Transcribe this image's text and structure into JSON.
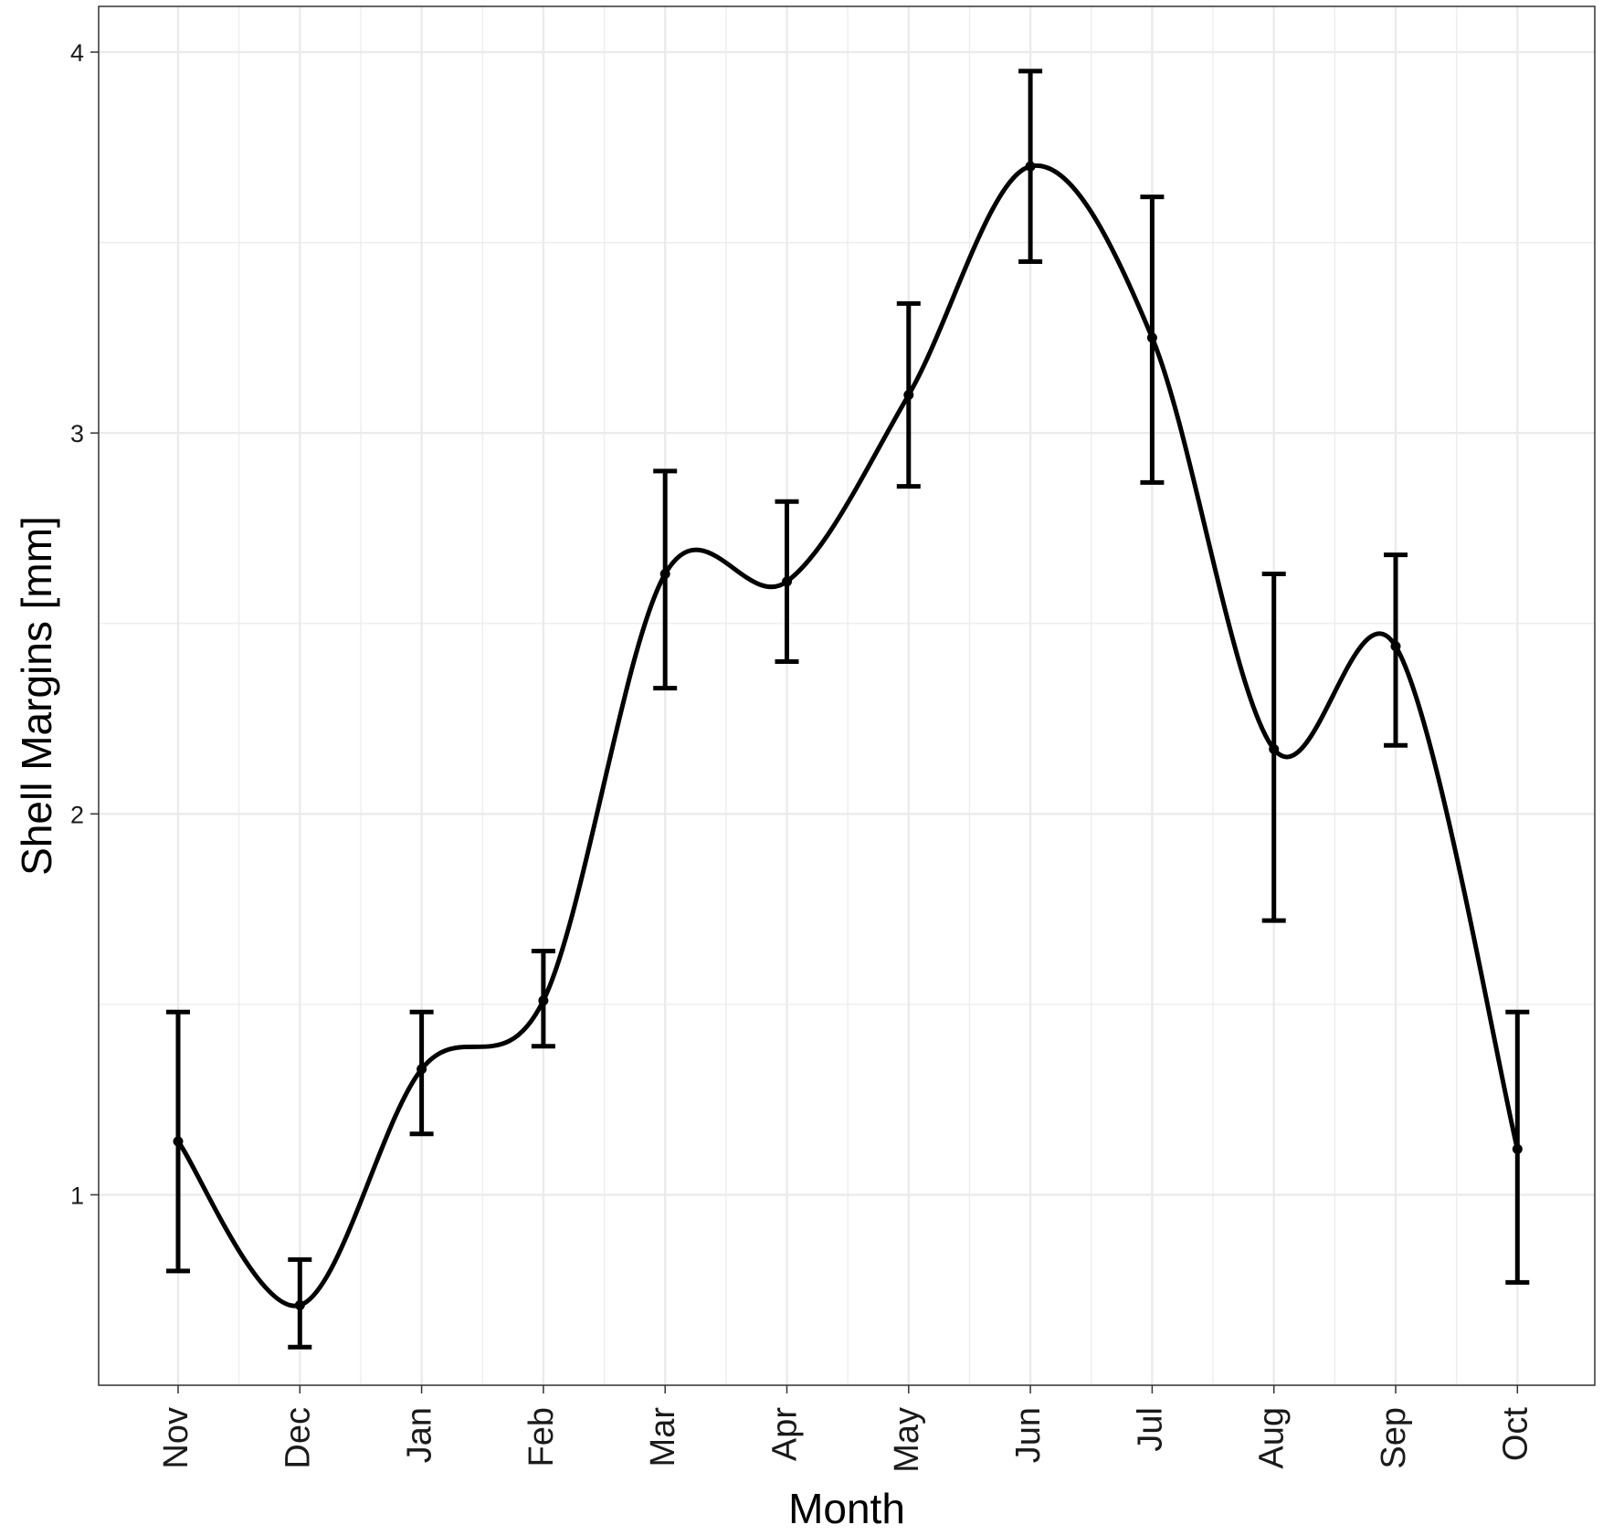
{
  "chart_data": {
    "type": "line",
    "title": "",
    "xlabel": "Month",
    "ylabel": "Shell Margins [mm]",
    "categories": [
      "Nov",
      "Dec",
      "Jan",
      "Feb",
      "Mar",
      "Apr",
      "May",
      "Jun",
      "Jul",
      "Aug",
      "Sep",
      "Oct"
    ],
    "series": [
      {
        "values": [
          1.14,
          0.71,
          1.33,
          1.51,
          2.63,
          2.61,
          3.1,
          3.7,
          3.25,
          2.17,
          2.44,
          1.12
        ],
        "error_low": [
          0.8,
          0.6,
          1.16,
          1.39,
          2.33,
          2.4,
          2.86,
          3.45,
          2.87,
          1.72,
          2.18,
          0.77
        ],
        "error_high": [
          1.48,
          0.83,
          1.48,
          1.64,
          2.9,
          2.82,
          3.34,
          3.95,
          3.62,
          2.63,
          2.68,
          1.48
        ]
      }
    ],
    "ylim": [
      0.5,
      4.12
    ],
    "yticks": [
      1,
      2,
      3,
      4
    ],
    "grid": true,
    "legend": "none",
    "colors": {
      "line": "#000000",
      "grid": "#ebebeb",
      "panel_border": "#333333"
    }
  }
}
